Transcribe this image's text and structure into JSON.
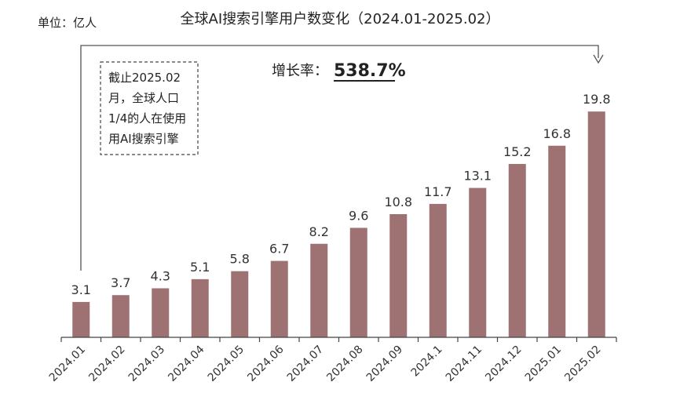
{
  "unit_label": "单位：亿人",
  "chart_data": {
    "type": "bar",
    "title": "全球AI搜索引擎用户数变化（2024.01-2025.02）",
    "categories": [
      "2024.01",
      "2024.02",
      "2024.03",
      "2024.04",
      "2024.05",
      "2024.06",
      "2024.07",
      "2024.08",
      "2024.09",
      "2024.1",
      "2024.11",
      "2024.12",
      "2025.01",
      "2025.02"
    ],
    "values": [
      3.1,
      3.7,
      4.3,
      5.1,
      5.8,
      6.7,
      8.2,
      9.6,
      10.8,
      11.7,
      13.1,
      15.2,
      16.8,
      19.8
    ],
    "value_labels": [
      "3.1",
      "3.7",
      "4.3",
      "5.1",
      "5.8",
      "6.7",
      "8.2",
      "9.6",
      "10.8",
      "11.7",
      "13.1",
      "15.2",
      "16.8",
      "19.8"
    ],
    "ylim": [
      0,
      22.7
    ],
    "grid": false,
    "bar_color": "#9e7272",
    "annotations": {
      "growth_label": "增长率：",
      "growth_value": "538.7%",
      "note_lines": [
        "截止2025.02",
        "月，全球人口",
        "1/4的人在使用",
        "用AI搜索引擎"
      ]
    }
  }
}
